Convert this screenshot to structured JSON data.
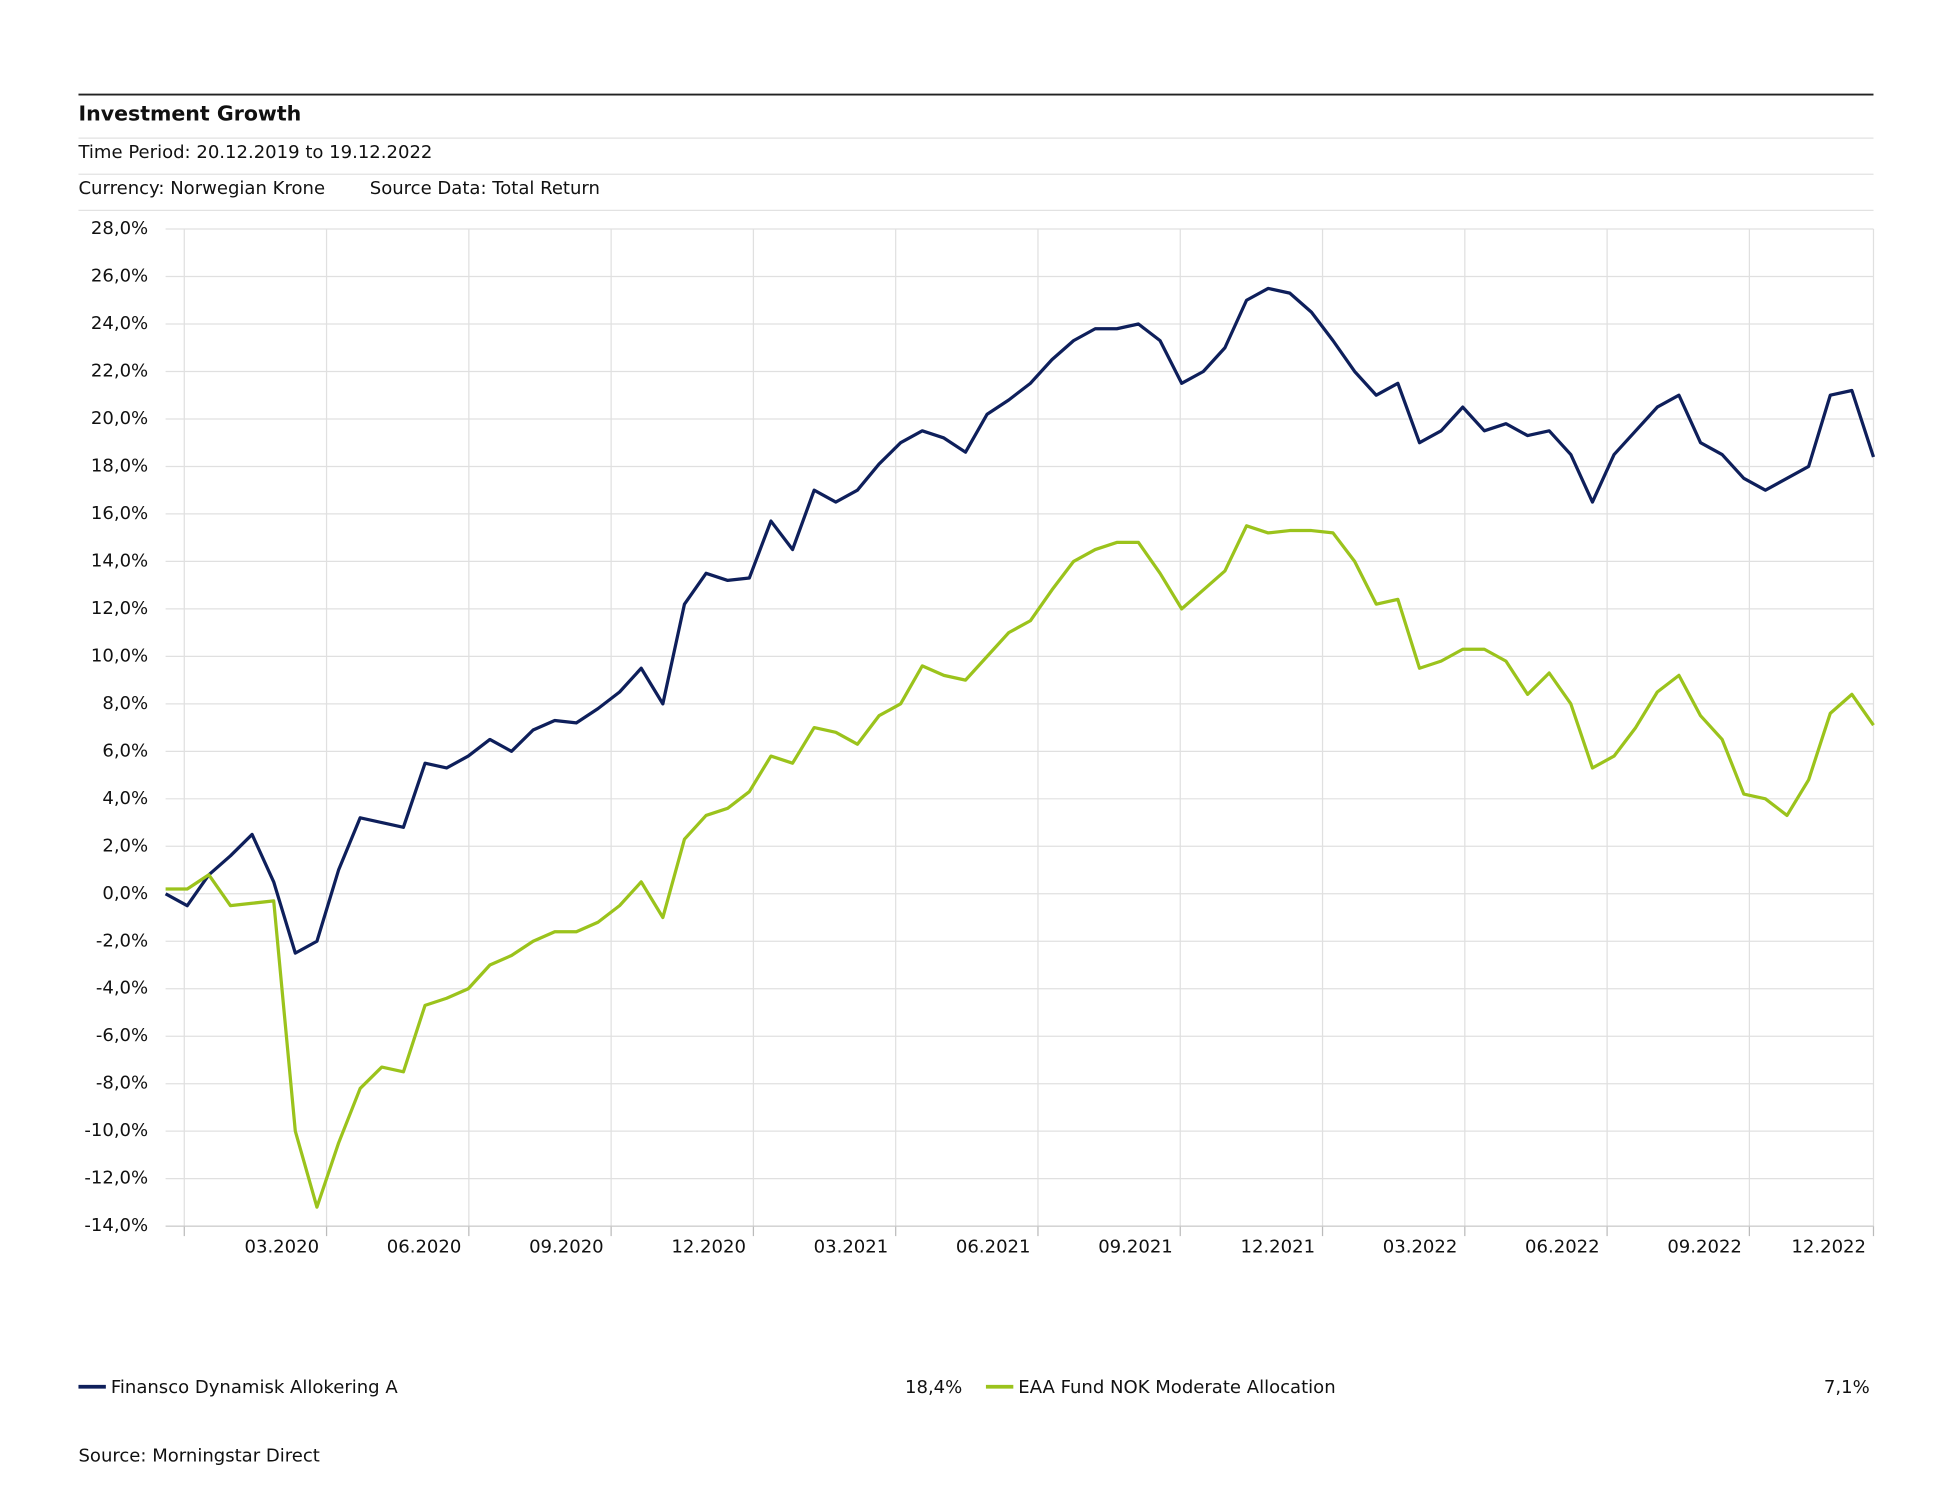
{
  "chart_data": {
    "type": "line",
    "title": "Investment Growth",
    "subtitle": "Time Period: 20.12.2019 to 19.12.2022",
    "currency": "Currency: Norwegian Krone",
    "source_data": "Source Data: Total Return",
    "source": "Source: Morningstar Direct",
    "ylim": [
      -14,
      28
    ],
    "yticks": [
      {
        "value": -14,
        "label": "-14,0%"
      },
      {
        "value": -12,
        "label": "-12,0%"
      },
      {
        "value": -10,
        "label": "-10,0%"
      },
      {
        "value": -8,
        "label": "-8,0%"
      },
      {
        "value": -6,
        "label": "-6,0%"
      },
      {
        "value": -4,
        "label": "-4,0%"
      },
      {
        "value": -2,
        "label": "-2,0%"
      },
      {
        "value": 0,
        "label": "0,0%"
      },
      {
        "value": 2,
        "label": "2,0%"
      },
      {
        "value": 4,
        "label": "4,0%"
      },
      {
        "value": 6,
        "label": "6,0%"
      },
      {
        "value": 8,
        "label": "8,0%"
      },
      {
        "value": 10,
        "label": "10,0%"
      },
      {
        "value": 12,
        "label": "12,0%"
      },
      {
        "value": 14,
        "label": "14,0%"
      },
      {
        "value": 16,
        "label": "16,0%"
      },
      {
        "value": 18,
        "label": "18,0%"
      },
      {
        "value": 20,
        "label": "20,0%"
      },
      {
        "value": 22,
        "label": "22,0%"
      },
      {
        "value": 24,
        "label": "24,0%"
      },
      {
        "value": 26,
        "label": "26,0%"
      },
      {
        "value": 28,
        "label": "28,0%"
      }
    ],
    "xtick_labels": [
      null,
      "03.2020",
      "06.2020",
      "09.2020",
      "12.2020",
      "03.2021",
      "06.2021",
      "09.2021",
      "12.2021",
      "03.2022",
      "06.2022",
      "09.2022",
      "12.2022"
    ],
    "grid": true,
    "series": [
      {
        "name": "Finansco Dynamisk Allokering A",
        "color": "#0e1f5b",
        "end_label": "18,4%",
        "values": [
          0.0,
          -0.5,
          0.8,
          1.6,
          2.5,
          0.5,
          -2.5,
          -2.0,
          1.0,
          3.2,
          3.0,
          2.8,
          5.5,
          5.3,
          5.8,
          6.5,
          6.0,
          6.9,
          7.3,
          7.2,
          7.8,
          8.5,
          9.5,
          8.0,
          12.2,
          13.5,
          13.2,
          13.3,
          15.7,
          14.5,
          17.0,
          16.5,
          17.0,
          18.1,
          19.0,
          19.5,
          19.2,
          18.6,
          20.2,
          20.8,
          21.5,
          22.5,
          23.3,
          23.8,
          23.8,
          24.0,
          23.3,
          21.5,
          22.0,
          23.0,
          25.0,
          25.5,
          25.3,
          24.5,
          23.3,
          22.0,
          21.0,
          21.5,
          19.0,
          19.5,
          20.5,
          19.5,
          19.8,
          19.3,
          19.5,
          18.5,
          16.5,
          18.5,
          19.5,
          20.5,
          21.0,
          19.0,
          18.5,
          17.5,
          17.0,
          17.5,
          18.0,
          21.0,
          21.2,
          18.4
        ]
      },
      {
        "name": "EAA Fund NOK Moderate Allocation",
        "color": "#9bc31c",
        "end_label": "7,1%",
        "values": [
          0.2,
          0.2,
          0.8,
          -0.5,
          -0.4,
          -0.3,
          -10.0,
          -13.2,
          -10.5,
          -8.2,
          -7.3,
          -7.5,
          -4.7,
          -4.4,
          -4.0,
          -3.0,
          -2.6,
          -2.0,
          -1.6,
          -1.6,
          -1.2,
          -0.5,
          0.5,
          -1.0,
          2.3,
          3.3,
          3.6,
          4.3,
          5.8,
          5.5,
          7.0,
          6.8,
          6.3,
          7.5,
          8.0,
          9.6,
          9.2,
          9.0,
          10.0,
          11.0,
          11.5,
          12.8,
          14.0,
          14.5,
          14.8,
          14.8,
          13.5,
          12.0,
          12.8,
          13.6,
          15.5,
          15.2,
          15.3,
          15.3,
          15.2,
          14.0,
          12.2,
          12.4,
          9.5,
          9.8,
          10.3,
          10.3,
          9.8,
          8.4,
          9.3,
          8.0,
          5.3,
          5.8,
          7.0,
          8.5,
          9.2,
          7.5,
          6.5,
          4.2,
          4.0,
          3.3,
          4.8,
          7.6,
          8.4,
          7.1
        ]
      }
    ]
  }
}
